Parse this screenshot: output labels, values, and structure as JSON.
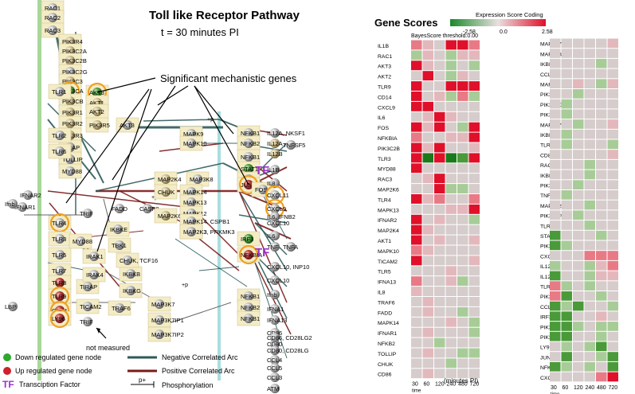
{
  "title": "Toll like Receptor Pathway",
  "subtitle": "t = 30 minutes PI",
  "annotation_significant": "Significant mechanistic genes",
  "annotation_not_measured": "not measured",
  "tf_marker": "TF",
  "gene_scores": {
    "title": "Gene Scores",
    "coding_label": "Expression Score Coding",
    "scale_min": "-2.58",
    "scale_mid": "0.0",
    "scale_max": "2.58",
    "threshold_label": "BayesScore threshold:0.00",
    "time_points": [
      "30",
      "60",
      "120",
      "240",
      "480",
      "720"
    ],
    "time_caption": "time",
    "x_caption": "(minutes PI)",
    "colors": {
      "up": "#e0102a",
      "down": "#1a8a2a",
      "neutral": "#d8c8c8"
    },
    "left_genes": [
      "IL1B",
      "RAC1",
      "AKT3",
      "AKT2",
      "TLR9",
      "CD14",
      "CXCL9",
      "IL6",
      "FOS",
      "NFKBIA",
      "PIK3C2B",
      "TLR3",
      "MYD88",
      "RAC3",
      "MAP2K6",
      "TLR4",
      "MAPK13",
      "IFNAR2",
      "MAP2K4",
      "AKT1",
      "MAPK10",
      "TICAM2",
      "TLR5",
      "IFNA13",
      "IL8",
      "TRAF6",
      "FADD",
      "MAPK14",
      "IFNAR1",
      "NFKB2",
      "TOLLIP",
      "CHUK",
      "CD86"
    ],
    "right_genes": [
      "MAP3K7IP",
      "MAP2K3",
      "IKBKE",
      "CCL3",
      "MAPK9",
      "PIK3R3",
      "PIK3C2G",
      "PIK3R4",
      "MAP3K7IF",
      "IKBKG",
      "TLR6",
      "CD80",
      "RAC2",
      "IKBKB",
      "PIK3R2",
      "TNF",
      "MAPK12",
      "PIK3C2A",
      "TLR2",
      "STAT1",
      "PIK3CB",
      "CXCL10",
      "IL12B",
      "IL12A",
      "TLR7",
      "PIK3CA",
      "CCL5",
      "IRF3",
      "PIK3C3",
      "PIK3R1",
      "LY96",
      "JUN",
      "NFKB1",
      "CXCL11"
    ],
    "left_values": [
      [
        2,
        1,
        0,
        3,
        3,
        2
      ],
      [
        -1,
        1,
        0,
        -1,
        1,
        1
      ],
      [
        3,
        1,
        0,
        -1,
        0,
        -1
      ],
      [
        0,
        3,
        0,
        -1,
        1,
        0
      ],
      [
        3,
        0,
        0,
        3,
        3,
        3
      ],
      [
        3,
        0,
        1,
        -1,
        2,
        -1
      ],
      [
        3,
        3,
        0,
        0,
        0,
        0
      ],
      [
        0,
        1,
        3,
        1,
        0,
        0
      ],
      [
        3,
        1,
        3,
        0,
        -1,
        3
      ],
      [
        2,
        0,
        0,
        1,
        1,
        3
      ],
      [
        3,
        1,
        3,
        0,
        0,
        1
      ],
      [
        3,
        -3,
        3,
        -3,
        -2,
        3
      ],
      [
        3,
        0,
        0,
        0,
        0,
        0
      ],
      [
        0,
        1,
        3,
        0,
        0,
        0
      ],
      [
        0,
        0,
        3,
        -1,
        -1,
        0
      ],
      [
        3,
        1,
        2,
        0,
        0,
        2
      ],
      [
        0,
        0,
        0,
        1,
        1,
        3
      ],
      [
        3,
        0,
        1,
        0,
        0,
        -1
      ],
      [
        3,
        1,
        0,
        0,
        0,
        0
      ],
      [
        3,
        0,
        1,
        0,
        0,
        1
      ],
      [
        2,
        1,
        0,
        0,
        0,
        0
      ],
      [
        3,
        0,
        0,
        0,
        0,
        1
      ],
      [
        0,
        0,
        0,
        1,
        0,
        0
      ],
      [
        2,
        0,
        0,
        1,
        -1,
        0
      ],
      [
        1,
        0,
        0,
        0,
        0,
        0
      ],
      [
        0,
        1,
        0,
        0,
        0,
        0
      ],
      [
        0,
        1,
        0,
        0,
        -1,
        0
      ],
      [
        0,
        0,
        0,
        1,
        0,
        -1
      ],
      [
        0,
        1,
        0,
        0,
        0,
        -1
      ],
      [
        0,
        0,
        -1,
        0,
        0,
        0
      ],
      [
        0,
        1,
        0,
        0,
        -1,
        -1
      ],
      [
        0,
        0,
        0,
        -1,
        0,
        0
      ],
      [
        0,
        1,
        0,
        0,
        0,
        0
      ]
    ],
    "right_values": [
      [
        0,
        0,
        0,
        0,
        0,
        1
      ],
      [
        0,
        0,
        0,
        0,
        0,
        0
      ],
      [
        0,
        0,
        0,
        0,
        -1,
        0
      ],
      [
        0,
        0,
        0,
        0,
        0,
        0
      ],
      [
        0,
        0,
        1,
        0,
        -1,
        1
      ],
      [
        0,
        0,
        -1,
        0,
        0,
        0
      ],
      [
        0,
        -1,
        0,
        0,
        0,
        0
      ],
      [
        0,
        -1,
        0,
        0,
        0,
        0
      ],
      [
        0,
        0,
        -1,
        0,
        0,
        1
      ],
      [
        0,
        -1,
        0,
        0,
        0,
        0
      ],
      [
        0,
        -1,
        0,
        0,
        0,
        -1
      ],
      [
        0,
        0,
        0,
        0,
        0,
        1
      ],
      [
        0,
        0,
        0,
        -1,
        0,
        0
      ],
      [
        0,
        0,
        0,
        -1,
        0,
        0
      ],
      [
        0,
        0,
        -1,
        0,
        0,
        0
      ],
      [
        0,
        -1,
        0,
        0,
        0,
        0
      ],
      [
        0,
        0,
        0,
        -1,
        0,
        0
      ],
      [
        0,
        0,
        -1,
        0,
        0,
        0
      ],
      [
        0,
        0,
        0,
        -1,
        0,
        0
      ],
      [
        -2,
        0,
        0,
        0,
        -1,
        0
      ],
      [
        -2,
        -1,
        0,
        0,
        0,
        0
      ],
      [
        0,
        0,
        0,
        2,
        2,
        2
      ],
      [
        -1,
        0,
        0,
        -1,
        1,
        2
      ],
      [
        -2,
        0,
        0,
        -1,
        1,
        1
      ],
      [
        2,
        -1,
        0,
        -1,
        0,
        0
      ],
      [
        2,
        -2,
        0,
        0,
        -1,
        0
      ],
      [
        -2,
        -1,
        -2,
        0,
        0,
        -1
      ],
      [
        -2,
        -2,
        0,
        0,
        1,
        0
      ],
      [
        -2,
        -2,
        -1,
        0,
        -1,
        -1
      ],
      [
        -2,
        -2,
        0,
        0,
        -1,
        0
      ],
      [
        0,
        -1,
        0,
        -1,
        -2,
        0
      ],
      [
        0,
        -2,
        0,
        0,
        -1,
        -2
      ],
      [
        -2,
        -1,
        0,
        -1,
        0,
        -2
      ],
      [
        0,
        0,
        0,
        0,
        2,
        3
      ]
    ]
  },
  "legend": {
    "down": "Down regulated gene node",
    "up": "Up regulated gene node",
    "tf": "Transciption Factor",
    "negative": "Negative Correlated Arc",
    "positive": "Positive Correlated Arc",
    "phospho": "Phosphorylation",
    "phospho_sym": "p+"
  },
  "nodes": {
    "left": [
      "RAC1",
      "RAC2",
      "RAC3",
      "PIK3R4",
      "PIK3C2A",
      "PIK3C2B",
      "PIK3C2G",
      "PIK3C3",
      "PIK3CA",
      "PIK3CB",
      "PIK3R1",
      "PIK3R2",
      "PIK3R3",
      "TIRAP",
      "TOLLIP",
      "MYD88",
      "TLR1",
      "TLR2",
      "TLR6",
      "TLR4",
      "TLR3",
      "TLR5",
      "TLR7",
      "TLR8",
      "TLR9",
      "CD14",
      "LY96",
      "LBP",
      "TICAM2",
      "TIRAP",
      "TRIF",
      "TRIF",
      "IFNAR1",
      "IFNAR2",
      "Ifnb",
      "FADD",
      "CASP8",
      "IRAK1",
      "IRAK4",
      "MYD88",
      "TBK1",
      "IKBKE",
      "TRAF6",
      "MAP3K7",
      "MAP3K7IP1",
      "MAP3K7IP2",
      "IKBKB",
      "IKBKG",
      "CHUK, TCF16"
    ],
    "akt": [
      "AKT3",
      "AKT1",
      "AKT2",
      "PIK3R5",
      "AKT3"
    ],
    "mapk": [
      "MAPK9",
      "MAPK10",
      "MAP2K4",
      "MAP3K8",
      "CHUK",
      "MAPK14",
      "MAPK13",
      "MAPK12",
      "MAP2K6",
      "MAP2K3",
      "MAPK14, CSPB1",
      "MAP2K3, PRKMK3"
    ],
    "center": [
      "NFKB1",
      "NFKB2",
      "NFKB1",
      "STAT1",
      "FOS",
      "JUN",
      "FOS",
      "IRF3",
      "NFKBIA",
      "NFKB1",
      "NFKB2",
      "NFKB1"
    ],
    "right": [
      "IL12A, NKSF1",
      "IL12A",
      "IL12B",
      "TNFSF5",
      "IL1B",
      "IL8",
      "CXCL11",
      "CXCL9",
      "CXCL10",
      "IL6",
      "IL6, IFNB2",
      "TNF",
      "TNFA",
      "CXCL10, INP10",
      "CXCL10",
      "Ifnb",
      "IFNA1",
      "IFNA13",
      "CD86",
      "CD80",
      "CD86, CD28LG2",
      "CD80, CD28LG",
      "CCL4",
      "CCL5",
      "CCL3",
      "ATM"
    ]
  }
}
